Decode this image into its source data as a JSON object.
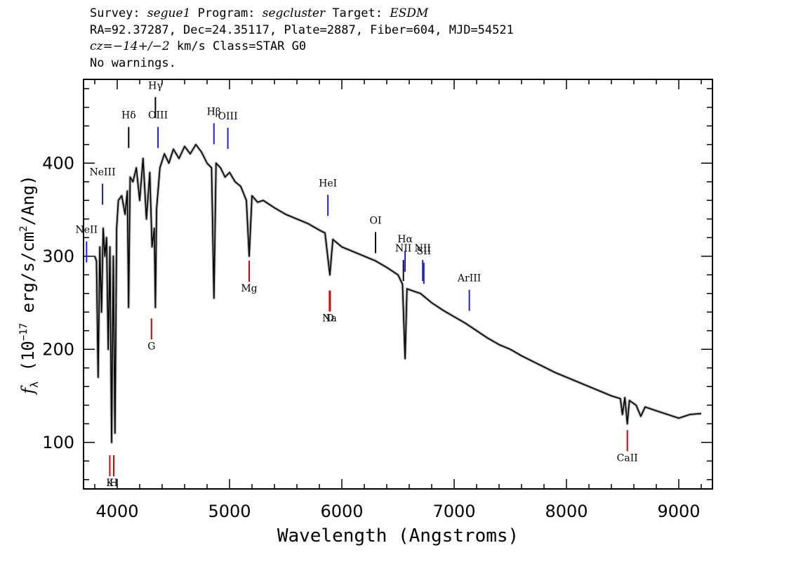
{
  "header": {
    "line1_a": "Survey: ",
    "survey": "segue1",
    "line1_b": " Program: ",
    "program": "segcluster",
    "line1_c": " Target: ",
    "target": "ESDM",
    "line2": "RA=92.37287, Dec=24.35117, Plate=2887, Fiber=604, MJD=54521",
    "line3_cz": "cz=−14+/−2",
    "line3_rest": " km/s Class=STAR G0",
    "line4": "No warnings."
  },
  "chart_data": {
    "type": "line",
    "xlabel": "Wavelength (Angstroms)",
    "ylabel": "f_λ (10^-17 erg/s/cm^2/Ang)",
    "xlim": [
      3700,
      9300
    ],
    "ylim": [
      50,
      490
    ],
    "x_ticks": [
      4000,
      5000,
      6000,
      7000,
      8000,
      9000
    ],
    "y_ticks": [
      100,
      200,
      300,
      400
    ],
    "series": [
      {
        "x": [
          3800,
          3815,
          3830,
          3845,
          3860,
          3875,
          3890,
          3905,
          3920,
          3935,
          3950,
          3965,
          3980,
          3995,
          4010,
          4040,
          4070,
          4090,
          4101,
          4115,
          4140,
          4170,
          4200,
          4230,
          4260,
          4290,
          4310,
          4330,
          4340,
          4350,
          4380,
          4420,
          4460,
          4500,
          4550,
          4600,
          4650,
          4700,
          4750,
          4800,
          4840,
          4861,
          4880,
          4920,
          4960,
          5000,
          5050,
          5100,
          5150,
          5175,
          5200,
          5250,
          5300,
          5400,
          5500,
          5600,
          5700,
          5800,
          5850,
          5893,
          5920,
          6000,
          6100,
          6200,
          6300,
          6400,
          6500,
          6540,
          6563,
          6580,
          6650,
          6700,
          6800,
          6900,
          7000,
          7100,
          7200,
          7300,
          7400,
          7500,
          7600,
          7700,
          7800,
          7900,
          8000,
          8100,
          8200,
          8300,
          8400,
          8480,
          8498,
          8520,
          8542,
          8560,
          8620,
          8662,
          8700,
          8800,
          8900,
          9000,
          9100,
          9200
        ],
        "y": [
          300,
          295,
          170,
          310,
          240,
          330,
          300,
          320,
          200,
          310,
          100,
          300,
          110,
          330,
          360,
          365,
          345,
          370,
          245,
          385,
          380,
          395,
          360,
          405,
          340,
          390,
          310,
          330,
          245,
          350,
          395,
          410,
          400,
          415,
          405,
          418,
          410,
          420,
          412,
          400,
          395,
          255,
          400,
          395,
          385,
          390,
          380,
          375,
          360,
          300,
          365,
          358,
          360,
          352,
          345,
          340,
          335,
          328,
          325,
          280,
          318,
          310,
          305,
          300,
          295,
          288,
          280,
          270,
          190,
          265,
          262,
          260,
          250,
          242,
          235,
          228,
          220,
          212,
          205,
          200,
          193,
          187,
          181,
          175,
          170,
          165,
          160,
          155,
          150,
          147,
          130,
          148,
          120,
          145,
          140,
          128,
          138,
          134,
          130,
          126,
          130,
          131
        ]
      }
    ],
    "lines": [
      {
        "label": "NeII",
        "x": 3727,
        "label_y": 325,
        "color": "#1a1aff"
      },
      {
        "label": "NeIII",
        "x": 3869,
        "label_y": 387,
        "color": "#1a1aff"
      },
      {
        "label": "Hδ",
        "x": 4102,
        "label_y": 448,
        "color": "#000000"
      },
      {
        "label": "Hγ",
        "x": 4340,
        "label_y": 480,
        "color": "#000000"
      },
      {
        "label": "OIII",
        "x": 4363,
        "label_y": 448,
        "color": "#1a1aff"
      },
      {
        "label": "Hβ",
        "x": 4861,
        "label_y": 452,
        "color": "#1a1aff"
      },
      {
        "label": "OIII",
        "x": 4985,
        "label_y": 447,
        "color": "#1a1aff"
      },
      {
        "label": "HeI",
        "x": 5876,
        "label_y": 375,
        "color": "#1a1aff"
      },
      {
        "label": "OI",
        "x": 6300,
        "label_y": 335,
        "color": "#000000"
      },
      {
        "label": "NII",
        "x": 6548,
        "label_y": 305,
        "color": "#000000"
      },
      {
        "label": "Hα",
        "x": 6563,
        "label_y": 315,
        "color": "#1a1aff"
      },
      {
        "label": "NII",
        "x": 6720,
        "label_y": 305,
        "color": "#1a1aff"
      },
      {
        "label": "SII",
        "x": 6730,
        "label_y": 302,
        "color": "#1a1aff"
      },
      {
        "label": "ArIII",
        "x": 7135,
        "label_y": 273,
        "color": "#1a1aff"
      },
      {
        "label": "K",
        "x": 3934,
        "label_y": 53,
        "color": "#dd0000"
      },
      {
        "label": "H",
        "x": 3969,
        "label_y": 53,
        "color": "#dd0000"
      },
      {
        "label": "G",
        "x": 4305,
        "label_y": 200,
        "color": "#dd0000"
      },
      {
        "label": "Mg",
        "x": 5175,
        "label_y": 262,
        "color": "#dd0000"
      },
      {
        "label": "Na",
        "x": 5890,
        "label_y": 230,
        "color": "#dd0000"
      },
      {
        "label": "D",
        "x": 5896,
        "label_y": 230,
        "color": "#dd0000"
      },
      {
        "label": "CaII",
        "x": 8542,
        "label_y": 80,
        "color": "#dd0000"
      }
    ]
  }
}
